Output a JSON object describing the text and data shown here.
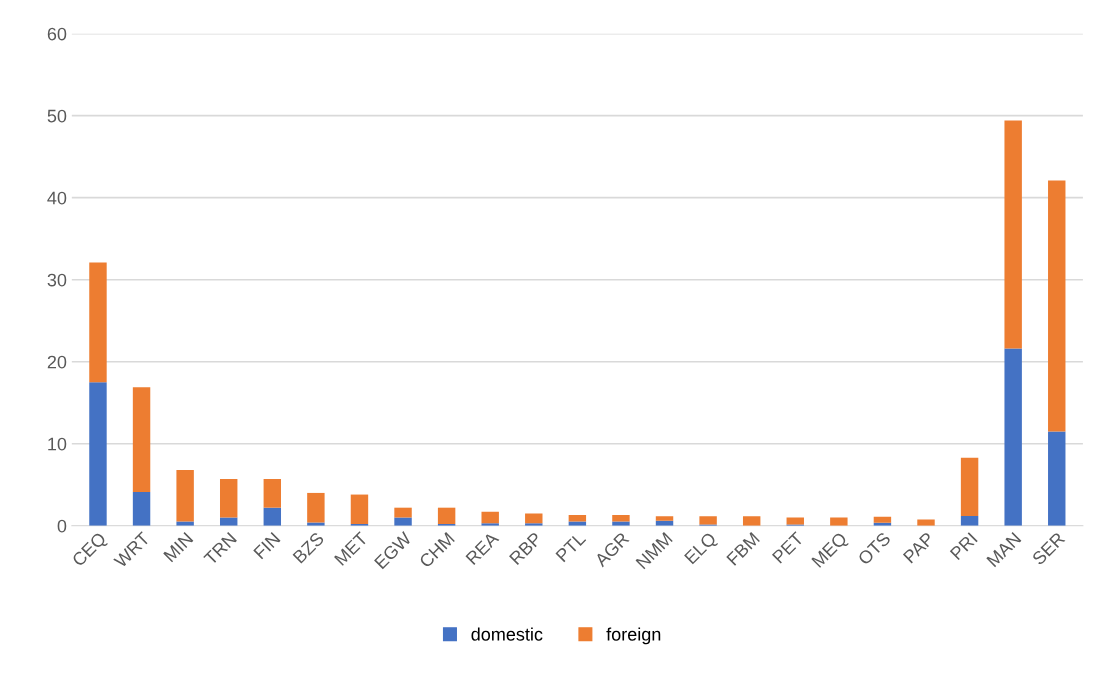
{
  "chart_data": {
    "type": "bar",
    "stacked": true,
    "categories": [
      "CEQ",
      "WRT",
      "MIN",
      "TRN",
      "FIN",
      "BZS",
      "MET",
      "EGW",
      "CHM",
      "REA",
      "RBP",
      "PTL",
      "AGR",
      "NMM",
      "ELQ",
      "FBM",
      "PET",
      "MEQ",
      "OTS",
      "PAP",
      "PRI",
      "MAN",
      "SER"
    ],
    "series": [
      {
        "name": "domestic",
        "color": "#4472c4",
        "values": [
          17.5,
          4.1,
          0.5,
          1.0,
          2.2,
          0.4,
          0.2,
          1.0,
          0.2,
          0.3,
          0.3,
          0.5,
          0.5,
          0.6,
          0.15,
          0,
          0.15,
          0,
          0.35,
          0,
          1.2,
          21.6,
          11.5
        ]
      },
      {
        "name": "foreign",
        "color": "#ed7d31",
        "values": [
          14.6,
          12.8,
          6.3,
          4.7,
          3.5,
          3.6,
          3.6,
          1.2,
          2.0,
          1.4,
          1.2,
          0.8,
          0.8,
          0.55,
          1.0,
          1.15,
          0.85,
          1.0,
          0.75,
          0.75,
          7.1,
          27.8,
          30.6
        ]
      }
    ],
    "ylim": [
      0,
      60
    ],
    "yticks": [
      0,
      10,
      20,
      30,
      40,
      50,
      60
    ],
    "grid": "y",
    "legend": "bottom"
  }
}
